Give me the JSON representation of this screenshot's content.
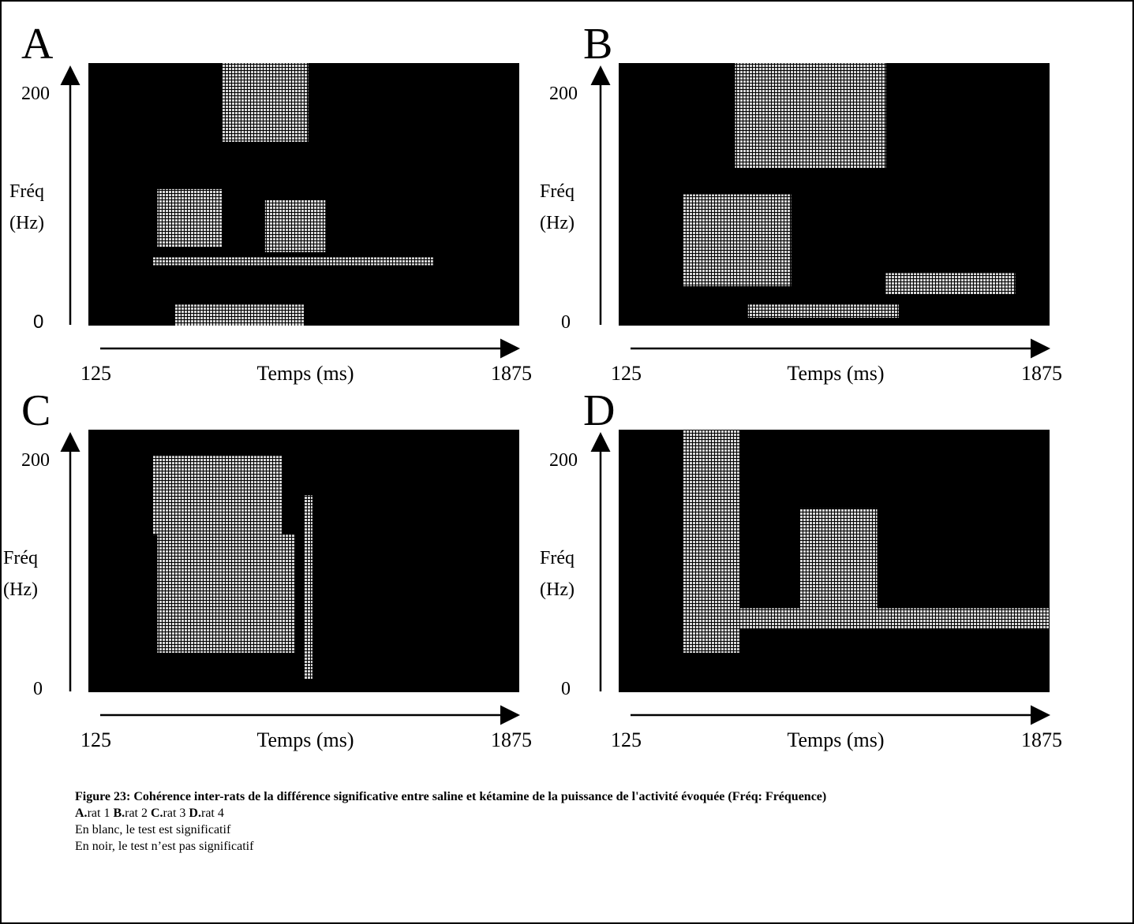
{
  "panels": [
    {
      "letter": "A",
      "y_top": "200",
      "y_bottom": "0",
      "y_label_1": "Fréq",
      "y_label_2": "(Hz)",
      "x_start": "125",
      "x_label": "Temps (ms)",
      "x_end": "1875"
    },
    {
      "letter": "B",
      "y_top": "200",
      "y_bottom": "0",
      "y_label_1": "Fréq",
      "y_label_2": "(Hz)",
      "x_start": "125",
      "x_label": "Temps (ms)",
      "x_end": "1875"
    },
    {
      "letter": "C",
      "y_top": "200",
      "y_bottom": "0",
      "y_label_1": "Fréq",
      "y_label_2": "(Hz)",
      "x_start": "125",
      "x_label": "Temps (ms)",
      "x_end": "1875"
    },
    {
      "letter": "D",
      "y_top": "200",
      "y_bottom": "0",
      "y_label_1": "Fréq",
      "y_label_2": "(Hz)",
      "x_start": "125",
      "x_label": "Temps (ms)",
      "x_end": "1875"
    }
  ],
  "caption": {
    "title": "Figure 23: Cohérence inter-rats de la différence significative entre saline et kétamine de la puissance de  l'activité évoquée  (Fréq: Fréquence)",
    "rats": [
      {
        "key": "A.",
        "text": "rat 1"
      },
      {
        "key": "B.",
        "text": "rat 2"
      },
      {
        "key": "C.",
        "text": "rat 3"
      },
      {
        "key": "D.",
        "text": "rat 4"
      }
    ],
    "notes": [
      "En blanc, le test est significatif",
      "En noir, le test n’est pas significatif"
    ]
  }
}
